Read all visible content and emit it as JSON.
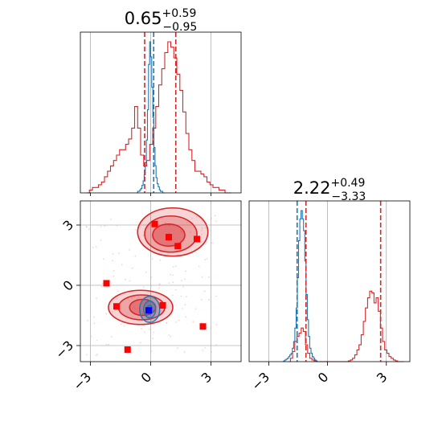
{
  "colors": {
    "blue": "#1f77b4",
    "red": "#d62728",
    "marker_red": "#ff0000",
    "marker_blue": "#0000ff",
    "grid": "#b0b0b0"
  },
  "chart_data": {
    "type": "corner",
    "parameters": 2,
    "grid": true,
    "ticks": [
      -3,
      0,
      3
    ],
    "tick_labels": [
      "−3",
      "0",
      "3"
    ],
    "param1": {
      "title_value": "0.65",
      "title_plus": "+0.59",
      "title_minus": "−0.95",
      "xlim": [
        -3.5,
        4.5
      ],
      "blue_lines": [
        0.15
      ],
      "red_lines": [
        -0.3,
        1.25
      ],
      "blue_hist": {
        "range": [
          -0.7,
          0.7
        ],
        "bins": 26,
        "values": [
          0,
          0.01,
          0.01,
          0.02,
          0.03,
          0.05,
          0.08,
          0.12,
          0.2,
          0.35,
          0.55,
          0.85,
          1.0,
          0.9,
          0.7,
          0.5,
          0.3,
          0.18,
          0.1,
          0.06,
          0.04,
          0.02,
          0.01,
          0.01,
          0,
          0
        ]
      },
      "red_hist": {
        "range": [
          -3.2,
          4.0
        ],
        "bins": 48,
        "values": [
          0,
          0.005,
          0.01,
          0.01,
          0.015,
          0.02,
          0.03,
          0.04,
          0.05,
          0.06,
          0.07,
          0.08,
          0.08,
          0.09,
          0.1,
          0.12,
          0.16,
          0.12,
          0.07,
          0.05,
          0.06,
          0.09,
          0.12,
          0.16,
          0.2,
          0.23,
          0.26,
          0.28,
          0.27,
          0.25,
          0.22,
          0.19,
          0.15,
          0.11,
          0.08,
          0.06,
          0.04,
          0.04,
          0.035,
          0.03,
          0.02,
          0.015,
          0.01,
          0.01,
          0.005,
          0.005,
          0,
          0
        ]
      }
    },
    "param2": {
      "title_value": "2.22",
      "title_plus": "+0.49",
      "title_minus": "−3.33",
      "xlim": [
        -4,
        4.2
      ],
      "blue_lines": [
        -1.55
      ],
      "red_lines": [
        -1.1,
        2.71
      ],
      "blue_hist": {
        "range": [
          -2.3,
          -0.4
        ],
        "bins": 30,
        "values": [
          0,
          0.005,
          0.01,
          0.015,
          0.02,
          0.03,
          0.04,
          0.05,
          0.08,
          0.12,
          0.2,
          0.32,
          0.5,
          0.72,
          0.85,
          0.9,
          0.85,
          0.78,
          0.6,
          0.4,
          0.25,
          0.15,
          0.08,
          0.05,
          0.03,
          0.02,
          0.01,
          0.005,
          0,
          0
        ]
      },
      "red_hist": {
        "range": [
          -2.0,
          3.9
        ],
        "bins": 54,
        "values": [
          0,
          0.02,
          0.06,
          0.12,
          0.15,
          0.17,
          0.2,
          0.18,
          0.1,
          0.05,
          0.02,
          0.01,
          0.005,
          0,
          0,
          0,
          0,
          0,
          0,
          0,
          0,
          0,
          0,
          0,
          0,
          0,
          0,
          0,
          0.005,
          0.01,
          0.02,
          0.04,
          0.07,
          0.1,
          0.16,
          0.24,
          0.32,
          0.38,
          0.42,
          0.41,
          0.35,
          0.38,
          0.3,
          0.2,
          0.12,
          0.07,
          0.05,
          0.03,
          0.02,
          0.01,
          0.005,
          0,
          0,
          0
        ]
      }
    },
    "joint": {
      "xlim": [
        -3.5,
        4.5
      ],
      "ylim": [
        -3.8,
        4.2
      ],
      "red_contours": [
        {
          "cx": 1.1,
          "cy": 2.65,
          "rx": 1.75,
          "ry": 1.2,
          "level": 0.35
        },
        {
          "cx": 1.0,
          "cy": 2.55,
          "rx": 1.3,
          "ry": 0.9,
          "level": 0.5
        },
        {
          "cx": 0.9,
          "cy": 2.5,
          "rx": 0.8,
          "ry": 0.55,
          "level": 0.7
        },
        {
          "cx": -0.5,
          "cy": -1.1,
          "rx": 1.6,
          "ry": 0.85,
          "level": 0.35
        },
        {
          "cx": -0.45,
          "cy": -1.1,
          "rx": 1.15,
          "ry": 0.62,
          "level": 0.5
        },
        {
          "cx": -0.4,
          "cy": -1.1,
          "rx": 0.65,
          "ry": 0.4,
          "level": 0.7
        }
      ],
      "blue_contours": [
        {
          "cx": -0.05,
          "cy": -1.2,
          "rx": 0.5,
          "ry": 0.65
        },
        {
          "cx": -0.05,
          "cy": -1.2,
          "rx": 0.3,
          "ry": 0.42
        },
        {
          "cx": -0.05,
          "cy": -1.2,
          "rx": 0.14,
          "ry": 0.2
        }
      ],
      "red_markers": [
        {
          "x": 0.2,
          "y": 3.05
        },
        {
          "x": 0.9,
          "y": 2.4
        },
        {
          "x": 1.35,
          "y": 1.95
        },
        {
          "x": 2.3,
          "y": 2.3
        },
        {
          "x": -2.2,
          "y": 0.1
        },
        {
          "x": -1.7,
          "y": -1.05
        },
        {
          "x": 0.6,
          "y": -1.0
        },
        {
          "x": 2.6,
          "y": -2.05
        },
        {
          "x": -1.15,
          "y": -3.2
        }
      ],
      "blue_markers": [
        {
          "x": -0.1,
          "y": -1.25
        }
      ]
    }
  }
}
